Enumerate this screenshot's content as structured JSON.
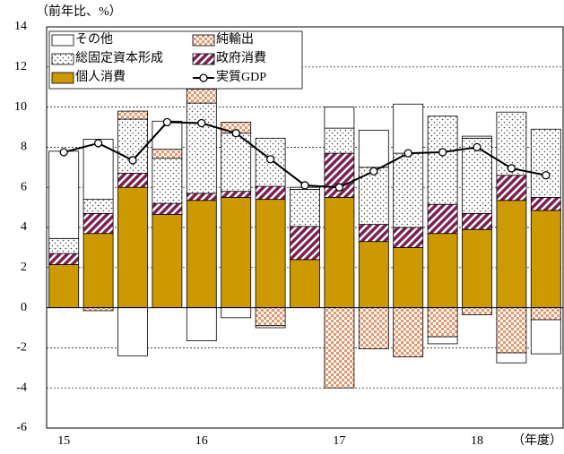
{
  "chart_data": {
    "type": "bar",
    "y_label": "（前年比、%）",
    "x_label": "（年度）",
    "categories": [
      "15",
      null,
      null,
      null,
      "16",
      null,
      null,
      null,
      "17",
      null,
      null,
      null,
      "18",
      null,
      null
    ],
    "ylim": [
      -6,
      14
    ],
    "yticks": [
      -6,
      -4,
      -2,
      0,
      2,
      4,
      6,
      8,
      10,
      12,
      14
    ],
    "grid": true,
    "legend": "upper left",
    "series": [
      {
        "name": "個人消費",
        "color": "#cc9900",
        "values": [
          2.15,
          3.7,
          6.0,
          4.65,
          5.35,
          5.5,
          5.4,
          2.4,
          5.5,
          3.3,
          3.0,
          3.7,
          3.9,
          5.35,
          4.85
        ]
      },
      {
        "name": "政府消費",
        "color": "#7b2050",
        "values": [
          0.55,
          1.0,
          0.7,
          0.55,
          0.35,
          0.3,
          0.65,
          1.65,
          2.2,
          0.85,
          1.0,
          1.45,
          0.8,
          1.25,
          0.65
        ]
      },
      {
        "name": "総固定資本形成",
        "color": "#444444",
        "values": [
          0.75,
          0.7,
          2.7,
          2.25,
          4.5,
          2.9,
          2.4,
          1.85,
          1.25,
          2.85,
          3.7,
          4.4,
          3.75,
          3.15,
          3.4
        ]
      },
      {
        "name": "純輸出",
        "color": "#e8956a",
        "values": [
          0,
          -0.15,
          0.4,
          0.45,
          0.7,
          0.55,
          -0.9,
          0,
          -4.0,
          -2.05,
          -2.45,
          -1.45,
          -0.35,
          -2.25,
          -0.6
        ]
      },
      {
        "name": "その他",
        "color": "#ffffff",
        "values": [
          4.35,
          3.0,
          -2.4,
          1.4,
          -1.65,
          -0.5,
          -0.1,
          0.1,
          1.05,
          1.85,
          2.45,
          -0.35,
          0.1,
          -0.5,
          -1.7
        ]
      },
      {
        "name": "実質GDP",
        "type": "line",
        "color": "#000000",
        "values": [
          7.75,
          8.2,
          7.35,
          9.25,
          9.2,
          8.7,
          7.4,
          6.1,
          6.0,
          6.8,
          7.7,
          7.75,
          8.0,
          6.95,
          6.6
        ]
      }
    ]
  }
}
